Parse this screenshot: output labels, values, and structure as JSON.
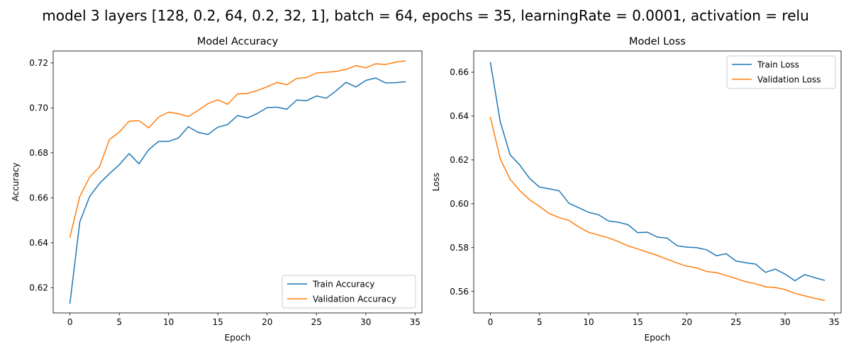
{
  "suptitle": "model 3 layers [128, 0.2, 64, 0.2, 32, 1],  batch = 64, epochs = 35, learningRate = 0.0001, activation = relu",
  "colors": {
    "train": "#1f77b4",
    "validation": "#ff7f0e",
    "axes": "#000000",
    "legend_border": "#cccccc"
  },
  "chart_data": [
    {
      "type": "line",
      "title": "Model Accuracy",
      "xlabel": "Epoch",
      "ylabel": "Accuracy",
      "xlim": [
        -1.7,
        35.7
      ],
      "ylim": [
        0.6088,
        0.7253
      ],
      "xticks": [
        0,
        5,
        10,
        15,
        20,
        25,
        30,
        35
      ],
      "yticks": [
        0.62,
        0.64,
        0.66,
        0.68,
        0.7,
        0.72
      ],
      "ytick_labels": [
        "0.62",
        "0.64",
        "0.66",
        "0.68",
        "0.70",
        "0.72"
      ],
      "grid": false,
      "legend_loc": "lower right",
      "x": [
        0,
        1,
        2,
        3,
        4,
        5,
        6,
        7,
        8,
        9,
        10,
        11,
        12,
        13,
        14,
        15,
        16,
        17,
        18,
        19,
        20,
        21,
        22,
        23,
        24,
        25,
        26,
        27,
        28,
        29,
        30,
        31,
        32,
        33,
        34
      ],
      "series": [
        {
          "name": "Train Accuracy",
          "color": "#1f77b4",
          "values": [
            0.6131,
            0.6493,
            0.6606,
            0.6664,
            0.6707,
            0.6747,
            0.6797,
            0.6751,
            0.6815,
            0.6851,
            0.6851,
            0.6866,
            0.6916,
            0.6891,
            0.6882,
            0.6914,
            0.6926,
            0.6966,
            0.6955,
            0.6975,
            0.7001,
            0.7003,
            0.6994,
            0.7035,
            0.7032,
            0.7053,
            0.7043,
            0.7076,
            0.7114,
            0.7093,
            0.7122,
            0.7133,
            0.7111,
            0.7112,
            0.7116
          ]
        },
        {
          "name": "Validation Accuracy",
          "color": "#ff7f0e",
          "values": [
            0.6425,
            0.6606,
            0.6692,
            0.6738,
            0.6859,
            0.6892,
            0.6941,
            0.6943,
            0.6911,
            0.6959,
            0.6981,
            0.6974,
            0.6961,
            0.6989,
            0.7019,
            0.7036,
            0.7016,
            0.7062,
            0.7064,
            0.7077,
            0.7094,
            0.7113,
            0.7103,
            0.7131,
            0.7135,
            0.7155,
            0.7158,
            0.7162,
            0.7171,
            0.7188,
            0.7178,
            0.7196,
            0.7193,
            0.7203,
            0.7209
          ]
        }
      ]
    },
    {
      "type": "line",
      "title": "Model Loss",
      "xlabel": "Epoch",
      "ylabel": "Loss",
      "xlim": [
        -1.7,
        35.7
      ],
      "ylim": [
        0.5502,
        0.6697
      ],
      "xticks": [
        0,
        5,
        10,
        15,
        20,
        25,
        30,
        35
      ],
      "yticks": [
        0.56,
        0.58,
        0.6,
        0.62,
        0.64,
        0.66
      ],
      "ytick_labels": [
        "0.56",
        "0.58",
        "0.60",
        "0.62",
        "0.64",
        "0.66"
      ],
      "grid": false,
      "legend_loc": "upper right",
      "x": [
        0,
        1,
        2,
        3,
        4,
        5,
        6,
        7,
        8,
        9,
        10,
        11,
        12,
        13,
        14,
        15,
        16,
        17,
        18,
        19,
        20,
        21,
        22,
        23,
        24,
        25,
        26,
        27,
        28,
        29,
        30,
        31,
        32,
        33,
        34
      ],
      "series": [
        {
          "name": "Train Loss",
          "color": "#1f77b4",
          "values": [
            0.6644,
            0.6374,
            0.6224,
            0.6176,
            0.6115,
            0.6076,
            0.6068,
            0.6059,
            0.6002,
            0.5982,
            0.5961,
            0.595,
            0.5922,
            0.5916,
            0.5905,
            0.5868,
            0.587,
            0.5848,
            0.5843,
            0.5809,
            0.5802,
            0.58,
            0.579,
            0.5763,
            0.5772,
            0.5739,
            0.5731,
            0.5725,
            0.5687,
            0.5702,
            0.5679,
            0.5649,
            0.5677,
            0.5663,
            0.5651
          ]
        },
        {
          "name": "Validation Loss",
          "color": "#ff7f0e",
          "values": [
            0.6394,
            0.6205,
            0.6112,
            0.6059,
            0.6018,
            0.5988,
            0.5955,
            0.5937,
            0.5924,
            0.5894,
            0.587,
            0.5857,
            0.5845,
            0.5828,
            0.5808,
            0.5794,
            0.5779,
            0.5764,
            0.5747,
            0.573,
            0.5715,
            0.5708,
            0.5691,
            0.5686,
            0.5673,
            0.5659,
            0.5644,
            0.5635,
            0.5621,
            0.5618,
            0.5609,
            0.5591,
            0.558,
            0.5569,
            0.5559
          ]
        }
      ]
    }
  ]
}
